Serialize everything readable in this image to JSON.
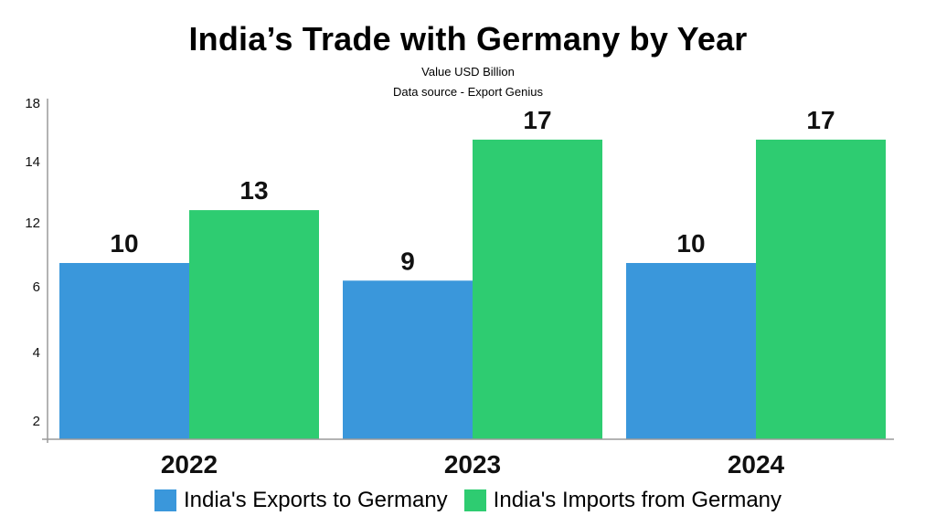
{
  "chart_data": {
    "type": "bar",
    "title": "India’s Trade with Germany by Year",
    "subtitles": [
      "Value USD Billion",
      "Data source - Export Genius"
    ],
    "categories": [
      "2022",
      "2023",
      "2024"
    ],
    "series": [
      {
        "name": "India's Exports to Germany",
        "color": "#3a97db",
        "values": [
          10,
          9,
          10
        ]
      },
      {
        "name": "India's Imports from Germany",
        "color": "#2ecc71",
        "values": [
          13,
          17,
          17
        ]
      }
    ],
    "yticks": [
      "2",
      "4",
      "6",
      "12",
      "14",
      "18"
    ],
    "xlabel": "",
    "ylabel": "",
    "grid": false,
    "legend_position": "bottom"
  }
}
